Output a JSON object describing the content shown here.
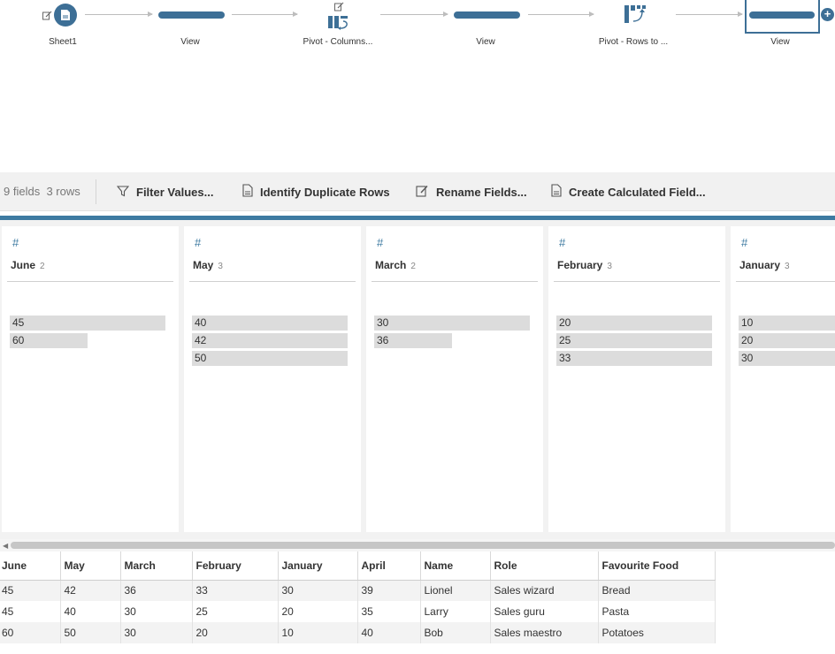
{
  "flow": {
    "steps": [
      {
        "label": "Sheet1",
        "icon": "excel-sheet-icon"
      },
      {
        "label": "View",
        "icon": "view-bar-icon"
      },
      {
        "label": "Pivot - Columns...",
        "icon": "pivot-columns-icon"
      },
      {
        "label": "View",
        "icon": "view-bar-icon"
      },
      {
        "label": "Pivot - Rows to ...",
        "icon": "pivot-rows-icon"
      },
      {
        "label": "View",
        "icon": "view-bar-icon"
      }
    ],
    "add_label": "+"
  },
  "toolbar": {
    "fields": "9 fields",
    "rows": "3 rows",
    "filter": "Filter Values...",
    "duplicates": "Identify Duplicate Rows",
    "rename": "Rename Fields...",
    "calculated": "Create Calculated Field..."
  },
  "profile": {
    "type_symbol": "#",
    "cards": [
      {
        "name": "June",
        "count": "2",
        "values": [
          {
            "v": "45",
            "share": 1.0
          },
          {
            "v": "60",
            "share": 0.5
          }
        ]
      },
      {
        "name": "May",
        "count": "3",
        "values": [
          {
            "v": "40",
            "share": 1.0
          },
          {
            "v": "42",
            "share": 1.0
          },
          {
            "v": "50",
            "share": 1.0
          }
        ]
      },
      {
        "name": "March",
        "count": "2",
        "values": [
          {
            "v": "30",
            "share": 1.0
          },
          {
            "v": "36",
            "share": 0.5
          }
        ]
      },
      {
        "name": "February",
        "count": "3",
        "values": [
          {
            "v": "20",
            "share": 1.0
          },
          {
            "v": "25",
            "share": 1.0
          },
          {
            "v": "33",
            "share": 1.0
          }
        ]
      },
      {
        "name": "January",
        "count": "3",
        "values": [
          {
            "v": "10",
            "share": 1.0
          },
          {
            "v": "20",
            "share": 1.0
          },
          {
            "v": "30",
            "share": 1.0
          }
        ]
      }
    ]
  },
  "grid": {
    "columns": [
      "June",
      "May",
      "March",
      "February",
      "January",
      "April",
      "Name",
      "Role",
      "Favourite Food"
    ],
    "rows": [
      [
        "45",
        "42",
        "36",
        "33",
        "30",
        "39",
        "Lionel",
        "Sales wizard",
        "Bread"
      ],
      [
        "45",
        "40",
        "30",
        "25",
        "20",
        "35",
        "Larry",
        "Sales guru",
        "Pasta"
      ],
      [
        "60",
        "50",
        "30",
        "20",
        "10",
        "40",
        "Bob",
        "Sales maestro",
        "Potatoes"
      ]
    ]
  },
  "colors": {
    "accent": "#3d7aa1",
    "node": "#3d6f96",
    "bar": "#dcdcdc"
  }
}
